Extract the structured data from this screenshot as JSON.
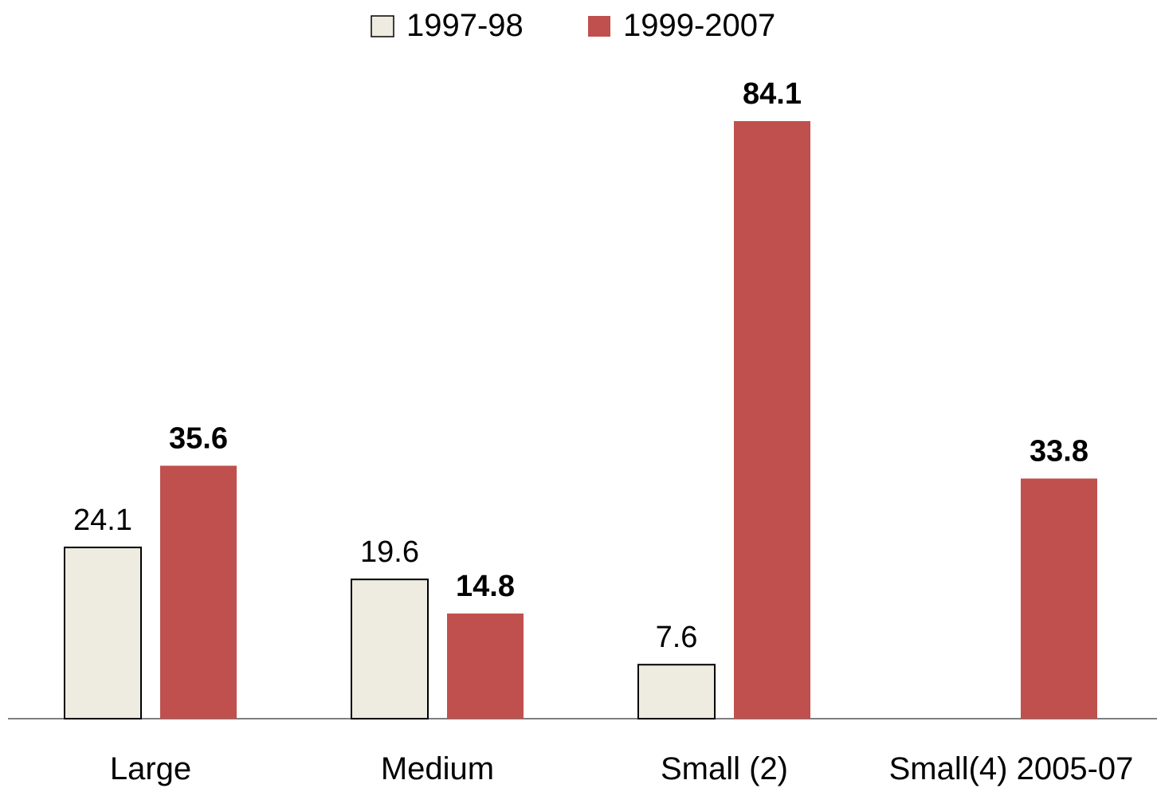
{
  "chart_data": {
    "type": "bar",
    "categories": [
      "Large",
      "Medium",
      "Small (2)",
      "Small(4) 2005-07"
    ],
    "series": [
      {
        "name": "1997-98",
        "color": "#eeebe0",
        "values": [
          24.1,
          19.6,
          7.6,
          null
        ]
      },
      {
        "name": "1999-2007",
        "color": "#c0504d",
        "values": [
          35.6,
          14.8,
          84.1,
          33.8
        ]
      }
    ]
  }
}
